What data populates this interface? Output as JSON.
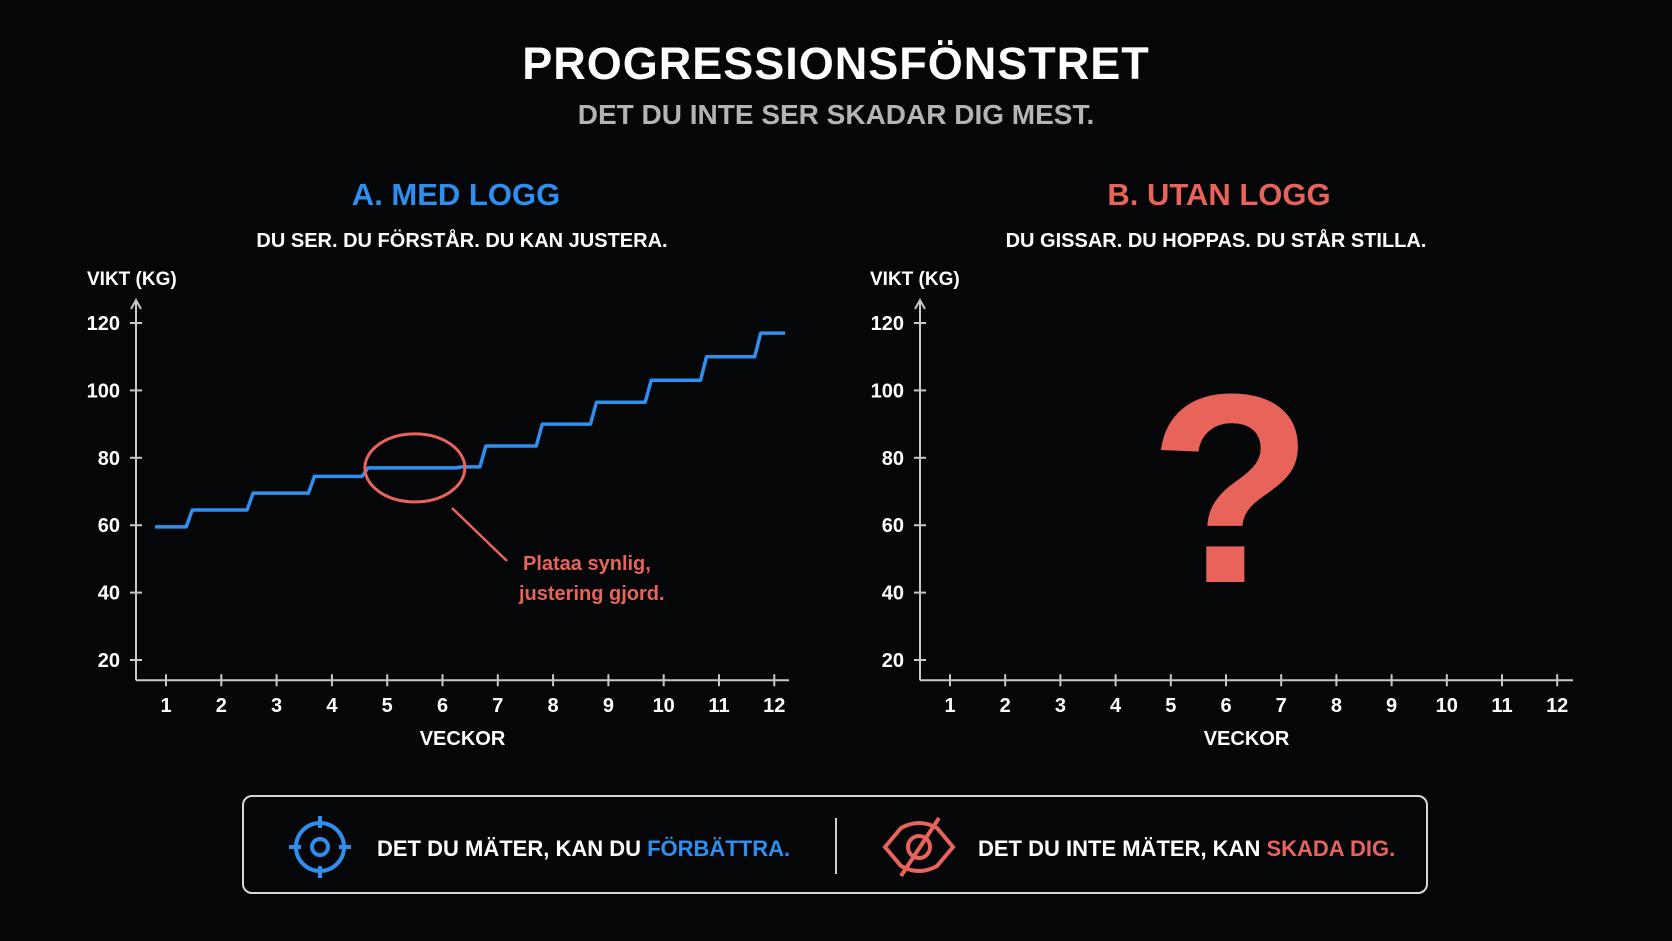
{
  "title": "PROGRESSIONSFÖNSTRET",
  "subtitle": "DET DU INTE SER SKADAR DIG MEST.",
  "colors": {
    "blue": "#2f8ff0",
    "red": "#e8635a",
    "axis": "#c8c8c8",
    "background": "#050608"
  },
  "panels": [
    {
      "heading": "A. MED LOGG",
      "subheading": "DU SER. DU FÖRSTÅR. DU KAN JUSTERA."
    },
    {
      "heading": "B. UTAN LOGG",
      "subheading": "DU GISSAR. DU HOPPAS. DU STÅR STILLA."
    }
  ],
  "chart_data": [
    {
      "type": "line",
      "style": "step",
      "ylabel": "VIKT (KG)",
      "xlabel": "VECKOR",
      "yticks": [
        20,
        40,
        60,
        80,
        100,
        120
      ],
      "xticks": [
        1,
        2,
        3,
        4,
        5,
        6,
        7,
        8,
        9,
        10,
        11,
        12
      ],
      "ylim": [
        14,
        126
      ],
      "xlim": [
        0.5,
        12.3
      ],
      "grid": false,
      "series": [
        {
          "color": "#2f8ff0",
          "steps": [
            {
              "week": 0.8,
              "kg": 59.5
            },
            {
              "week": 1.42,
              "kg": 64.5
            },
            {
              "week": 2.52,
              "kg": 69.5
            },
            {
              "week": 3.63,
              "kg": 74.5
            },
            {
              "week": 4.6,
              "kg": 77
            },
            {
              "week": 6.3,
              "kg": 77.3
            },
            {
              "week": 6.73,
              "kg": 83.5
            },
            {
              "week": 7.75,
              "kg": 90
            },
            {
              "week": 8.73,
              "kg": 96.5
            },
            {
              "week": 9.72,
              "kg": 103
            },
            {
              "week": 10.72,
              "kg": 110
            },
            {
              "week": 11.7,
              "kg": 117
            }
          ],
          "end_week": 12.25
        }
      ],
      "annotation": {
        "lines": [
          "Plataa synlig,",
          "justering gjord."
        ],
        "highlight_weeks": [
          4.6,
          6.4
        ],
        "highlight_kg": 77,
        "color": "#e8635a"
      }
    },
    {
      "type": "line",
      "ylabel": "VIKT (KG)",
      "xlabel": "VECKOR",
      "yticks": [
        20,
        40,
        60,
        80,
        100,
        120
      ],
      "xticks": [
        1,
        2,
        3,
        4,
        5,
        6,
        7,
        8,
        9,
        10,
        11,
        12
      ],
      "ylim": [
        14,
        126
      ],
      "xlim": [
        0.5,
        12.3
      ],
      "grid": false,
      "series": [],
      "annotation": {
        "symbol": "?",
        "color": "#e8635a"
      }
    }
  ],
  "footer": {
    "left": {
      "icon": "target-icon",
      "text": "DET DU MÄTER, KAN DU ",
      "highlight": "FÖRBÄTTRA."
    },
    "right": {
      "icon": "eye-slash-icon",
      "text": "DET DU INTE MÄTER, KAN ",
      "highlight": "SKADA DIG."
    }
  }
}
